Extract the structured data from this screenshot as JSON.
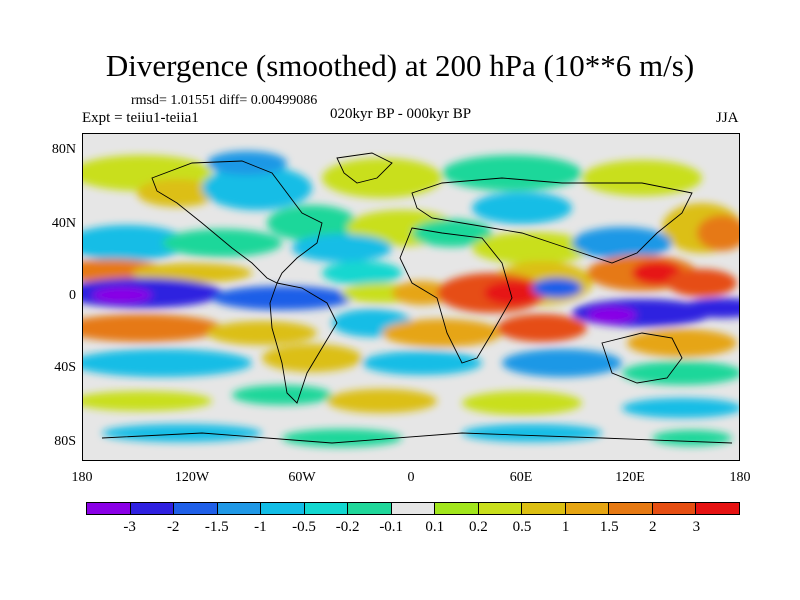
{
  "title": "Divergence (smoothed) at 200 hPa (10**6 m/s)",
  "stats": "rmsd= 1.01551 diff= 0.00499086",
  "experiment": "Expt = teiiu1-teiia1",
  "period": "020kyr BP - 000kyr BP",
  "season": "JJA",
  "lat_labels": [
    "80N",
    "40N",
    "0",
    "40S",
    "80S"
  ],
  "lon_labels": [
    "180",
    "120W",
    "60W",
    "0",
    "60E",
    "120E",
    "180"
  ],
  "colorbar": {
    "colors": [
      "#8a00e6",
      "#2f20e0",
      "#1f5fe8",
      "#1f98e6",
      "#12bde6",
      "#12d7d0",
      "#1fd79a",
      "#e6e6e6",
      "#a2e61c",
      "#c9df1c",
      "#dcbf12",
      "#e6a512",
      "#e67912",
      "#e64e12",
      "#e61212"
    ],
    "labels": [
      "-3",
      "-2",
      "-1.5",
      "-1",
      "-0.5",
      "-0.2",
      "-0.1",
      "0.1",
      "0.2",
      "0.5",
      "1",
      "1.5",
      "2",
      "3"
    ]
  }
}
